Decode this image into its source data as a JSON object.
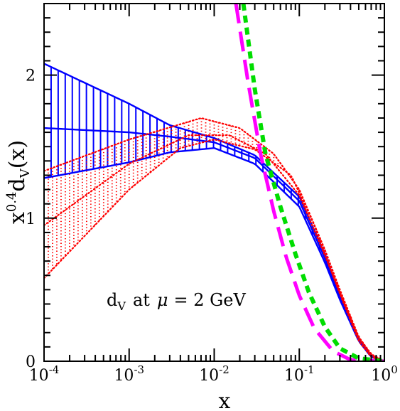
{
  "chart_data": {
    "type": "line",
    "title": "",
    "x_scale": "log",
    "xlim": [
      0.0001,
      1
    ],
    "ylim": [
      0,
      2.5
    ],
    "grid": false,
    "xlabel": "x",
    "ylabel": {
      "base": "x",
      "exp": "0.4",
      "func": "d",
      "sub": "V",
      "arg": "(x)"
    },
    "x_ticks": [
      {
        "value": 0.0001,
        "base": "10",
        "exp": "-4"
      },
      {
        "value": 0.001,
        "base": "10",
        "exp": "-3"
      },
      {
        "value": 0.01,
        "base": "10",
        "exp": "-2"
      },
      {
        "value": 0.1,
        "base": "10",
        "exp": "-1"
      },
      {
        "value": 1,
        "base": "10",
        "exp": "0"
      }
    ],
    "y_ticks": [
      {
        "value": 0,
        "label": "0"
      },
      {
        "value": 1,
        "label": "1"
      },
      {
        "value": 2,
        "label": "2"
      }
    ],
    "annotation": {
      "d": "d",
      "sub": "V",
      "rest": "at",
      "mu": "μ",
      "eq": "= 2 GeV"
    },
    "series": [
      {
        "color": "#0000ff",
        "style": "solid",
        "values": [
          [
            0.0001,
            1.63
          ],
          [
            0.001,
            1.6
          ],
          [
            0.003,
            1.57
          ],
          [
            0.01,
            1.53
          ],
          [
            0.03,
            1.42
          ],
          [
            0.1,
            1.12
          ],
          [
            0.2,
            0.72
          ],
          [
            0.3,
            0.45
          ],
          [
            0.5,
            0.15
          ],
          [
            0.7,
            0.04
          ],
          [
            1,
            0
          ]
        ]
      },
      {
        "color": "#0000ff",
        "style": "solid",
        "values": [
          [
            0.0001,
            2.08
          ],
          [
            0.001,
            1.8
          ],
          [
            0.003,
            1.65
          ],
          [
            0.01,
            1.56
          ],
          [
            0.03,
            1.44
          ],
          [
            0.1,
            1.15
          ],
          [
            0.2,
            0.75
          ],
          [
            0.3,
            0.47
          ],
          [
            0.5,
            0.16
          ],
          [
            0.7,
            0.04
          ],
          [
            1,
            0
          ]
        ]
      },
      {
        "color": "#0000ff",
        "style": "solid",
        "values": [
          [
            0.0001,
            1.28
          ],
          [
            0.001,
            1.39
          ],
          [
            0.003,
            1.46
          ],
          [
            0.01,
            1.49
          ],
          [
            0.03,
            1.38
          ],
          [
            0.1,
            1.08
          ],
          [
            0.2,
            0.69
          ],
          [
            0.3,
            0.43
          ],
          [
            0.5,
            0.14
          ],
          [
            0.7,
            0.03
          ],
          [
            1,
            0
          ]
        ]
      },
      {
        "color": "#ff0000",
        "style": "dotted",
        "values": [
          [
            0.0001,
            1.33
          ],
          [
            0.001,
            1.55
          ],
          [
            0.007,
            1.7
          ],
          [
            0.02,
            1.63
          ],
          [
            0.05,
            1.45
          ],
          [
            0.1,
            1.2
          ],
          [
            0.2,
            0.78
          ],
          [
            0.3,
            0.5
          ],
          [
            0.5,
            0.17
          ],
          [
            0.7,
            0.05
          ],
          [
            1,
            0
          ]
        ]
      },
      {
        "color": "#ff0000",
        "style": "dotted",
        "values": [
          [
            0.0001,
            0.58
          ],
          [
            0.001,
            1.2
          ],
          [
            0.004,
            1.49
          ],
          [
            0.01,
            1.55
          ],
          [
            0.03,
            1.48
          ],
          [
            0.08,
            1.3
          ],
          [
            0.15,
            0.95
          ],
          [
            0.3,
            0.47
          ],
          [
            0.5,
            0.14
          ],
          [
            0.7,
            0.03
          ],
          [
            1,
            0
          ]
        ]
      },
      {
        "color": "#ff0000",
        "style": "dotted",
        "values": [
          [
            0.0001,
            0.95
          ],
          [
            0.001,
            1.38
          ],
          [
            0.005,
            1.58
          ],
          [
            0.015,
            1.58
          ],
          [
            0.04,
            1.45
          ],
          [
            0.1,
            1.16
          ],
          [
            0.2,
            0.74
          ],
          [
            0.3,
            0.48
          ],
          [
            0.5,
            0.16
          ],
          [
            0.7,
            0.04
          ],
          [
            1,
            0
          ]
        ]
      },
      {
        "color": "#ff00ff",
        "style": "long-dash",
        "values": [
          [
            0.018,
            2.5
          ],
          [
            0.025,
            1.95
          ],
          [
            0.035,
            1.45
          ],
          [
            0.05,
            1.05
          ],
          [
            0.07,
            0.73
          ],
          [
            0.1,
            0.46
          ],
          [
            0.15,
            0.23
          ],
          [
            0.25,
            0.07
          ],
          [
            0.4,
            0.01
          ],
          [
            1,
            0
          ]
        ]
      },
      {
        "color": "#00dd00",
        "style": "short-dash",
        "values": [
          [
            0.022,
            2.5
          ],
          [
            0.03,
            1.9
          ],
          [
            0.04,
            1.45
          ],
          [
            0.06,
            1.08
          ],
          [
            0.09,
            0.75
          ],
          [
            0.13,
            0.48
          ],
          [
            0.2,
            0.24
          ],
          [
            0.3,
            0.09
          ],
          [
            0.5,
            0.02
          ],
          [
            1,
            0
          ]
        ]
      }
    ]
  }
}
